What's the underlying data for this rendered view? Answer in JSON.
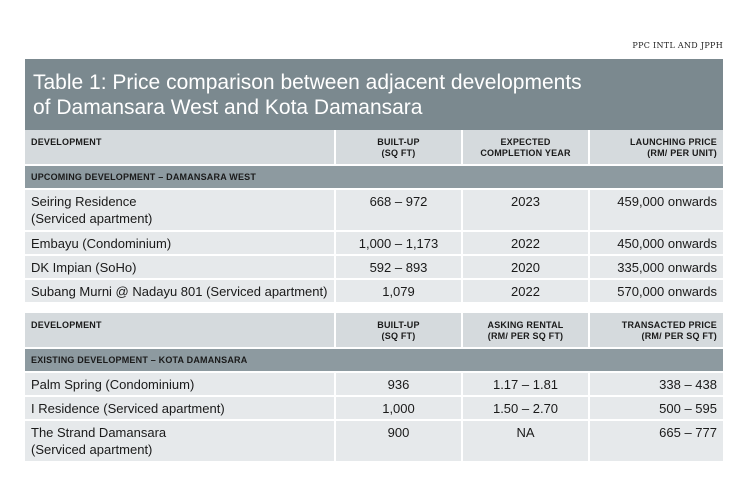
{
  "source": "PPC INTL AND JPPH",
  "title": {
    "line1": "Table 1: Price comparison between adjacent developments",
    "line2": "of Damansara West and Kota Damansara"
  },
  "upcoming": {
    "headers": {
      "development": "DEVELOPMENT",
      "builtup_1": "BUILT-UP",
      "builtup_2": "(SQ FT)",
      "completion_1": "EXPECTED",
      "completion_2": "COMPLETION YEAR",
      "price_1": "LAUNCHING PRICE",
      "price_2": "(RM/ PER UNIT)"
    },
    "section": "UPCOMING DEVELOPMENT – DAMANSARA WEST",
    "rows": [
      {
        "name1": "Seiring Residence",
        "name2": "(Serviced apartment)",
        "builtup": "668 – 972",
        "year": "2023",
        "price": "459,000 onwards"
      },
      {
        "name1": "Embayu (Condominium)",
        "name2": "",
        "builtup": "1,000 – 1,173",
        "year": "2022",
        "price": "450,000 onwards"
      },
      {
        "name1": "DK Impian (SoHo)",
        "name2": "",
        "builtup": "592 – 893",
        "year": "2020",
        "price": "335,000 onwards"
      },
      {
        "name1": "Subang Murni @ Nadayu 801 (Serviced apartment)",
        "name2": "",
        "builtup": "1,079",
        "year": "2022",
        "price": "570,000 onwards"
      }
    ]
  },
  "existing": {
    "headers": {
      "development": "DEVELOPMENT",
      "builtup_1": "BUILT-UP",
      "builtup_2": "(SQ FT)",
      "rental_1": "ASKING RENTAL",
      "rental_2": "(RM/ PER SQ FT)",
      "transacted_1": "TRANSACTED PRICE",
      "transacted_2": "(RM/ PER SQ FT)"
    },
    "section": "EXISTING DEVELOPMENT – KOTA DAMANSARA",
    "rows": [
      {
        "name1": "Palm Spring (Condominium)",
        "name2": "",
        "builtup": "936",
        "rental": "1.17 – 1.81",
        "transacted": "338 – 438"
      },
      {
        "name1": "I Residence (Serviced apartment)",
        "name2": "",
        "builtup": "1,000",
        "rental": "1.50 – 2.70",
        "transacted": "500 – 595"
      },
      {
        "name1": "The Strand Damansara",
        "name2": "(Serviced apartment)",
        "builtup": "900",
        "rental": "NA",
        "transacted": "665 – 777"
      }
    ]
  }
}
